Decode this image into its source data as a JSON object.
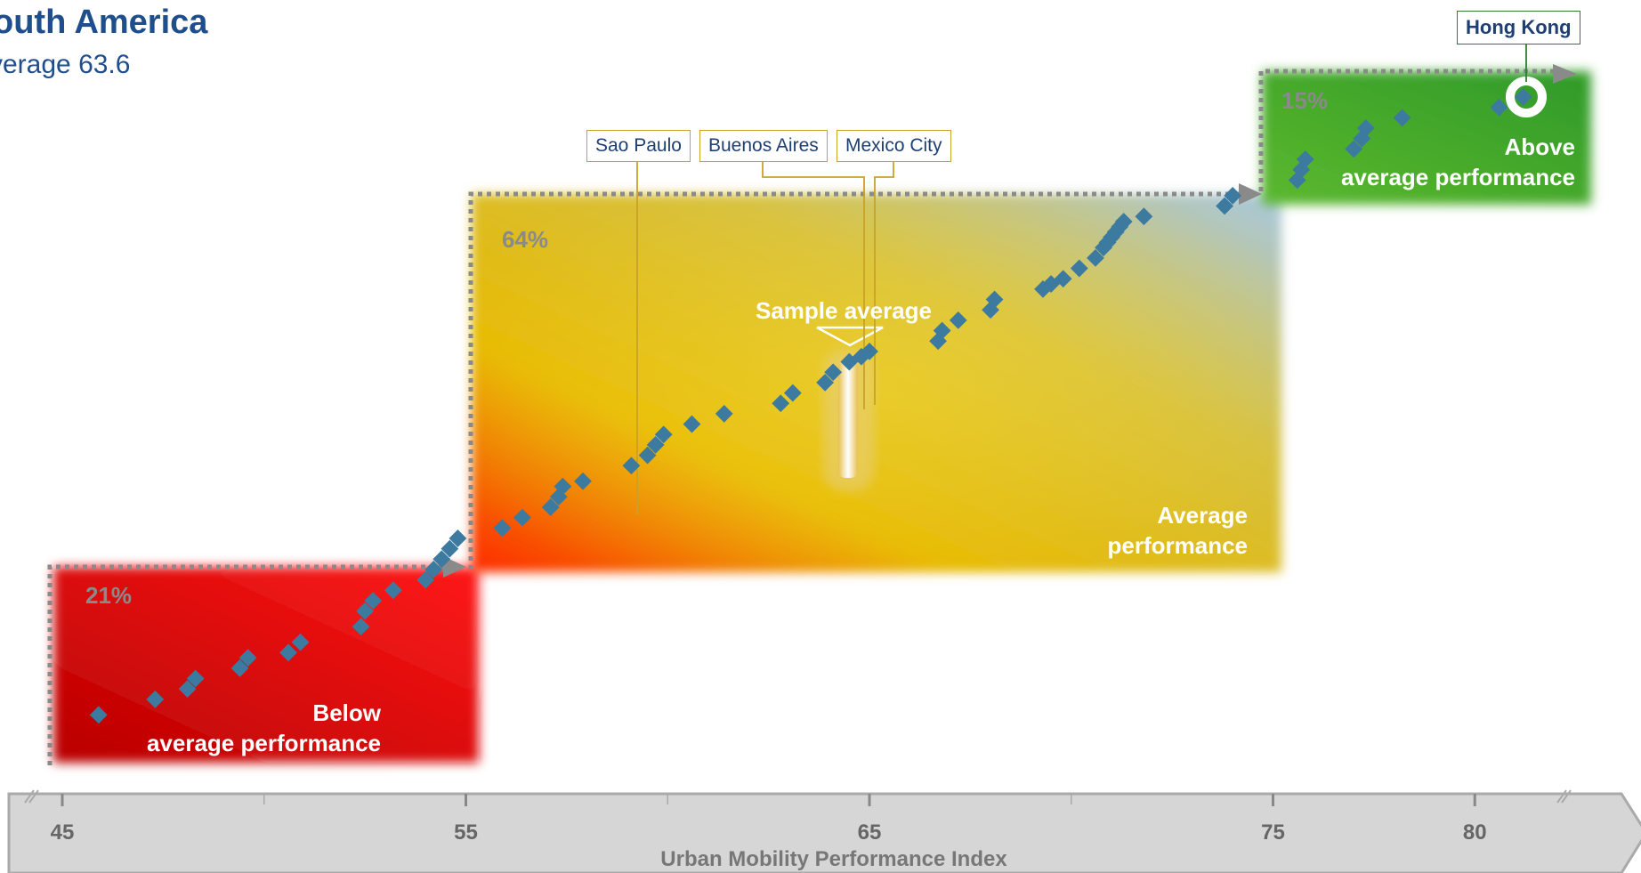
{
  "chart_data": {
    "type": "scatter",
    "title": "outh America",
    "subtitle": "verage 63.6",
    "xlabel": "Urban Mobility Performance Index",
    "ylabel": "",
    "xlim": [
      44.5,
      82
    ],
    "x_ticks": [
      45,
      55,
      65,
      75,
      80
    ],
    "grid": false,
    "legend": "none",
    "sample_average": 63.6,
    "sample_average_label": "Sample average",
    "zones": [
      {
        "name": "below",
        "label_line1": "Below",
        "label_line2": "average performance",
        "share": "21%",
        "x_range": [
          45,
          55
        ],
        "color": "#e60000"
      },
      {
        "name": "average",
        "label_line1": "Average",
        "label_line2": "performance",
        "share": "64%",
        "x_range": [
          55,
          75
        ],
        "color": "#e0b800"
      },
      {
        "name": "above",
        "label_line1": "Above",
        "label_line2": "average performance",
        "share": "15%",
        "x_range": [
          75,
          82
        ],
        "color": "#4caf2a"
      }
    ],
    "highlighted": [
      {
        "label": "Sao Paulo",
        "x": 59.2
      },
      {
        "label": "Buenos Aires",
        "x": 64.2
      },
      {
        "label": "Mexico City",
        "x": 64.5
      },
      {
        "label": "Hong Kong",
        "x": 81.2
      }
    ],
    "points": [
      [
        45.9,
        0.02
      ],
      [
        47.3,
        0.05
      ],
      [
        48.1,
        0.07
      ],
      [
        48.3,
        0.09
      ],
      [
        49.4,
        0.11
      ],
      [
        49.6,
        0.13
      ],
      [
        50.6,
        0.14
      ],
      [
        50.9,
        0.16
      ],
      [
        52.4,
        0.19
      ],
      [
        52.5,
        0.22
      ],
      [
        52.7,
        0.24
      ],
      [
        53.2,
        0.26
      ],
      [
        54.0,
        0.28
      ],
      [
        54.2,
        0.3
      ],
      [
        54.4,
        0.32
      ],
      [
        54.6,
        0.34
      ],
      [
        54.8,
        0.36
      ],
      [
        55.9,
        0.38
      ],
      [
        56.4,
        0.4
      ],
      [
        57.1,
        0.42
      ],
      [
        57.3,
        0.44
      ],
      [
        57.4,
        0.46
      ],
      [
        57.9,
        0.47
      ],
      [
        59.1,
        0.5
      ],
      [
        59.5,
        0.52
      ],
      [
        59.7,
        0.54
      ],
      [
        59.9,
        0.56
      ],
      [
        60.6,
        0.58
      ],
      [
        61.4,
        0.6
      ],
      [
        62.8,
        0.62
      ],
      [
        63.1,
        0.64
      ],
      [
        63.9,
        0.66
      ],
      [
        64.1,
        0.68
      ],
      [
        64.5,
        0.7
      ],
      [
        64.8,
        0.71
      ],
      [
        65.0,
        0.72
      ],
      [
        66.7,
        0.74
      ],
      [
        66.8,
        0.76
      ],
      [
        67.2,
        0.78
      ],
      [
        68.0,
        0.8
      ],
      [
        68.1,
        0.82
      ],
      [
        69.3,
        0.84
      ],
      [
        69.5,
        0.85
      ],
      [
        69.8,
        0.86
      ],
      [
        70.2,
        0.88
      ],
      [
        70.6,
        0.9
      ],
      [
        70.8,
        0.92
      ],
      [
        70.9,
        0.93
      ],
      [
        71.0,
        0.94
      ],
      [
        71.1,
        0.95
      ],
      [
        71.2,
        0.96
      ],
      [
        71.3,
        0.97
      ],
      [
        71.8,
        0.98
      ],
      [
        73.8,
        1.0
      ],
      [
        74.0,
        1.02
      ],
      [
        75.6,
        1.05
      ],
      [
        75.7,
        1.07
      ],
      [
        75.8,
        1.09
      ],
      [
        77.0,
        1.11
      ],
      [
        77.2,
        1.13
      ],
      [
        77.3,
        1.15
      ],
      [
        78.2,
        1.17
      ],
      [
        80.6,
        1.19
      ],
      [
        81.2,
        1.21
      ]
    ]
  }
}
